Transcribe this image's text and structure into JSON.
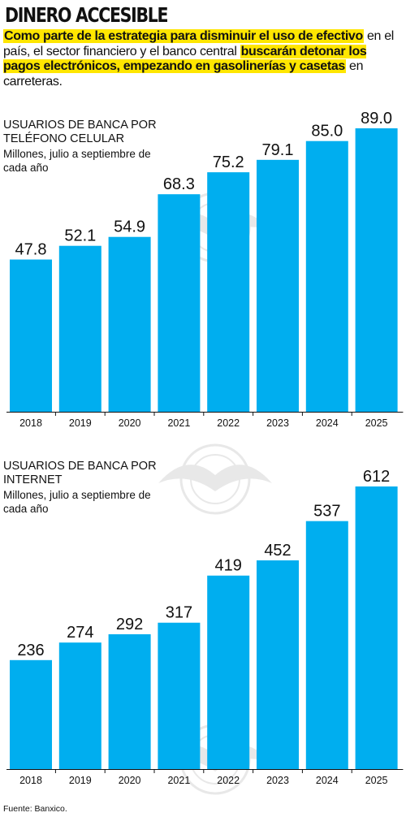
{
  "title": "DINERO ACCESIBLE",
  "intro": {
    "part1": "Como parte de la estrategia para disminuir el uso de efectivo",
    "part2": " en el país, el sector financiero y el banco central ",
    "part3": "buscarán detonar los pagos electrónicos, empezando en gasolinerías y casetas",
    "part4": " en carreteras."
  },
  "colors": {
    "bar": "#00aeef",
    "highlight": "#ffe600"
  },
  "source": "Fuente: Banxico.",
  "chart_data": [
    {
      "type": "bar",
      "title": "USUARIOS DE BANCA POR TELÉFONO CELULAR",
      "subtitle": "Millones, julio a septiembre de cada año",
      "categories": [
        "2018",
        "2019",
        "2020",
        "2021",
        "2022",
        "2023",
        "2024",
        "2025"
      ],
      "values": [
        47.8,
        52.1,
        54.9,
        68.3,
        75.2,
        79.1,
        85.0,
        89.0
      ],
      "value_labels": [
        "47.8",
        "52.1",
        "54.9",
        "68.3",
        "75.2",
        "79.1",
        "85.0",
        "89.0"
      ],
      "ylim": [
        0,
        89.0
      ]
    },
    {
      "type": "bar",
      "title": "USUARIOS DE BANCA POR INTERNET",
      "subtitle": "Millones, julio a septiembre de cada año",
      "categories": [
        "2018",
        "2019",
        "2020",
        "2021",
        "2022",
        "2023",
        "2024",
        "2025"
      ],
      "values": [
        236,
        274,
        292,
        317,
        419,
        452,
        537,
        612
      ],
      "value_labels": [
        "236",
        "274",
        "292",
        "317",
        "419",
        "452",
        "537",
        "612"
      ],
      "ylim": [
        0,
        612
      ]
    }
  ]
}
